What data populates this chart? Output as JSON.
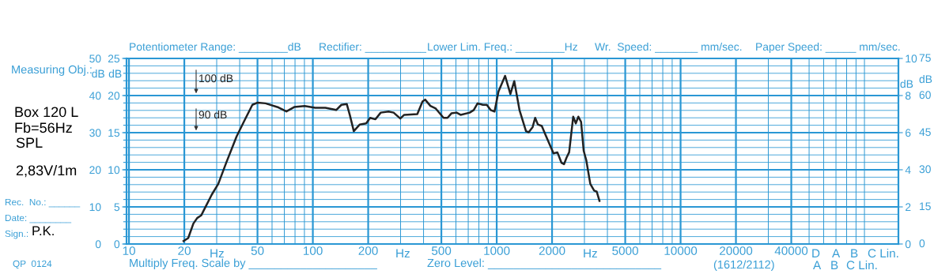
{
  "chart_data": {
    "type": "line",
    "x": [
      19.8,
      21.0,
      22.4,
      23.5,
      24.7,
      26.4,
      28.2,
      30.6,
      33.8,
      38.5,
      42.5,
      46.9,
      50.1,
      55.3,
      65.0,
      71.8,
      79.2,
      90.3,
      103,
      117,
      134,
      143,
      153,
      159,
      167,
      180,
      195,
      205,
      219,
      234,
      258,
      275,
      299,
      314,
      370,
      395,
      408,
      436,
      466,
      514,
      540,
      567,
      605,
      636,
      713,
      750,
      787,
      841,
      883,
      927,
      973,
      1023,
      1111,
      1187,
      1246,
      1330,
      1443,
      1493,
      1568,
      1619,
      1674,
      1758,
      1846,
      2037,
      2138,
      2249,
      2323,
      2399,
      2477,
      2606,
      2692,
      2780,
      2877,
      2972,
      3069,
      3228,
      3388,
      3500,
      3622
    ],
    "series": [
      {
        "color": "#222222",
        "values": [
          0.8,
          1.6,
          5.5,
          7.0,
          7.7,
          10.5,
          13.3,
          16.2,
          21.9,
          29.0,
          33.3,
          37.5,
          38.1,
          37.9,
          36.8,
          35.7,
          36.9,
          37.2,
          36.7,
          36.7,
          36.1,
          37.5,
          37.7,
          34.7,
          30.4,
          32.2,
          32.5,
          34.0,
          33.6,
          35.4,
          35.7,
          35.4,
          33.8,
          34.8,
          35.0,
          38.4,
          38.9,
          37.2,
          36.5,
          34.0,
          34.0,
          35.2,
          35.4,
          34.8,
          35.4,
          36.1,
          37.9,
          37.5,
          37.5,
          36.1,
          35.7,
          41.1,
          45.3,
          40.4,
          43.9,
          36.1,
          30.4,
          30.1,
          31.5,
          34.0,
          32.2,
          31.8,
          29.3,
          24.4,
          24.7,
          21.9,
          21.5,
          23.3,
          24.7,
          34.3,
          32.5,
          34.3,
          32.9,
          25.1,
          22.6,
          16.2,
          14.4,
          14.1,
          11.6
        ]
      }
    ],
    "log": "x",
    "xlim": [
      9.7,
      153000
    ],
    "xticks": [
      10,
      20,
      {
        "value": 30,
        "label": null
      },
      {
        "value": 40,
        "label": null
      },
      50,
      {
        "value": 60,
        "label": null
      },
      {
        "value": 70,
        "label": null
      },
      {
        "value": 80,
        "label": null
      },
      {
        "value": 90,
        "label": null
      },
      100,
      200,
      {
        "value": 300,
        "label": null
      },
      {
        "value": 400,
        "label": null
      },
      500,
      {
        "value": 600,
        "label": null
      },
      {
        "value": 700,
        "label": null
      },
      {
        "value": 800,
        "label": null
      },
      {
        "value": 900,
        "label": null
      },
      1000,
      2000,
      {
        "value": 3000,
        "label": null
      },
      {
        "value": 4000,
        "label": null
      },
      5000,
      {
        "value": 6000,
        "label": null
      },
      {
        "value": 7000,
        "label": null
      },
      {
        "value": 8000,
        "label": null
      },
      {
        "value": 9000,
        "label": null
      },
      10000,
      20000,
      {
        "value": 30000,
        "label": null
      },
      40000,
      {
        "value": 50000,
        "label": null
      },
      {
        "value": 60000,
        "label": null
      },
      {
        "value": 70000,
        "label": null
      },
      {
        "value": 80000,
        "label": null
      },
      {
        "value": 90000,
        "label": null
      },
      {
        "value": 100000,
        "label": null
      }
    ],
    "ylim": [
      0,
      50
    ],
    "yticks": [
      0,
      {
        "value": 2,
        "label": null
      },
      {
        "value": 4,
        "label": null
      },
      {
        "value": 6,
        "label": null
      },
      {
        "value": 8,
        "label": null
      },
      10,
      {
        "value": 12,
        "label": null
      },
      {
        "value": 14,
        "label": null
      },
      {
        "value": 16,
        "label": null
      },
      {
        "value": 18,
        "label": null
      },
      20,
      {
        "value": 22,
        "label": null
      },
      {
        "value": 24,
        "label": null
      },
      {
        "value": 26,
        "label": null
      },
      {
        "value": 28,
        "label": null
      },
      30,
      {
        "value": 32,
        "label": null
      },
      {
        "value": 34,
        "label": null
      },
      {
        "value": 36,
        "label": null
      },
      {
        "value": 38,
        "label": null
      },
      40,
      {
        "value": 42,
        "label": null
      },
      {
        "value": 44,
        "label": null
      },
      {
        "value": 46,
        "label": null
      },
      {
        "value": 48,
        "label": null
      },
      50
    ],
    "ylabel": "dB",
    "y2lim": [
      0,
      25
    ],
    "y2ticks": [
      0,
      5,
      10,
      15,
      20,
      25
    ],
    "y2label": "dB",
    "y3lim": [
      0,
      10
    ],
    "y3ticks": [
      0,
      2,
      4,
      6,
      8,
      10
    ],
    "y3label": "dB",
    "grid": true,
    "annotations": [
      "Potentiometer Range: ________dB",
      "Rectifier: __________",
      "Lower Lim. Freq.: ________Hz",
      "Wr.  Speed: _______ mm/sec.",
      "Paper Speed: _____ mm/sec.",
      "Measuring Obj.:",
      "Box 120 L",
      "Fb=56Hz",
      "SPL",
      "2,83V/1m",
      "Rec.  No.: ______",
      "Date: ________",
      "Sign.:",
      "P.K.",
      "QP  0124",
      "Multiply Freq. Scale by ____________________",
      "Zero Level: ___________________________",
      "Hz",
      "Hz",
      "Hz",
      "(1612/2112)",
      "D",
      "A",
      "B",
      "C Lin.",
      "A",
      "B",
      "C Lin.",
      "100 dB",
      "90 dB",
      "0",
      "15",
      "30",
      "45",
      "60",
      "75",
      "dB"
    ]
  }
}
